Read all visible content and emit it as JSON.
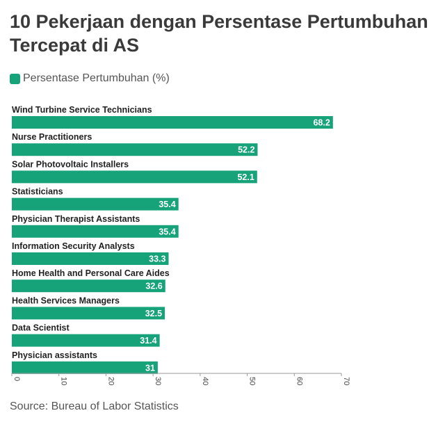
{
  "source_label": "Source: Bureau of Labor Statistics",
  "chart_data": {
    "type": "bar",
    "orientation": "horizontal",
    "title": "10 Pekerjaan dengan Persentase Pertumbuhan Tercepat di AS",
    "legend": {
      "placement": "top-left",
      "entries": [
        "Persentase Pertumbuhan (%)"
      ]
    },
    "categories": [
      "Wind Turbine Service Technicians",
      "Nurse Practitioners",
      "Solar Photovoltaic Installers",
      "Statisticians",
      "Physician Therapist Assistants",
      "Information Security Analysts",
      "Home Health and Personal Care Aides",
      "Health Services Managers",
      "Data Scientist",
      "Physician assistants"
    ],
    "series": [
      {
        "name": "Persentase Pertumbuhan (%)",
        "values": [
          68.2,
          52.2,
          52.1,
          35.4,
          35.4,
          33.3,
          32.6,
          32.5,
          31.4,
          31
        ],
        "color": "#17a37a"
      }
    ],
    "xlim": [
      0,
      70
    ],
    "xticks": [
      0,
      10,
      20,
      30,
      40,
      50,
      60,
      70
    ],
    "grid": false
  }
}
